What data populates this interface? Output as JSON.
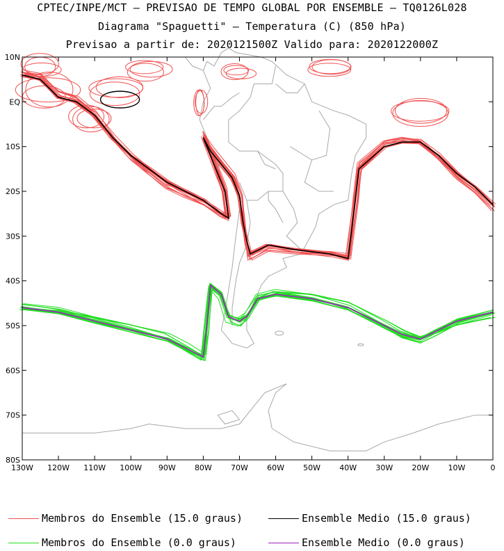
{
  "header": {
    "line1": "CPTEC/INPE/MCT — PREVISAO DE TEMPO GLOBAL POR ENSEMBLE — TQ0126L028",
    "line2": "Diagrama \"Spaguetti\" — Temperatura (C) (850 hPa)",
    "line3": "Previsao a partir de: 2020121500Z  Valido para: 2020122000Z"
  },
  "axes": {
    "y_ticks": [
      "10N",
      "EQ",
      "10S",
      "20S",
      "30S",
      "40S",
      "50S",
      "60S",
      "70S",
      "80S"
    ],
    "y_values": [
      10,
      0,
      -10,
      -20,
      -30,
      -40,
      -50,
      -60,
      -70,
      -80
    ],
    "x_ticks": [
      "130W",
      "120W",
      "110W",
      "100W",
      "90W",
      "80W",
      "70W",
      "60W",
      "50W",
      "40W",
      "30W",
      "20W",
      "10W",
      "0"
    ],
    "x_values": [
      -130,
      -120,
      -110,
      -100,
      -90,
      -80,
      -70,
      -60,
      -50,
      -40,
      -30,
      -20,
      -10,
      0
    ],
    "lon_range": [
      -130,
      0
    ],
    "lat_range": [
      -80,
      10
    ]
  },
  "colors": {
    "member_15": "#f05050",
    "mean_15": "#000000",
    "member_0": "#22dd22",
    "mean_0": "#a020c0",
    "coast": "#a8a8a8"
  },
  "chart_data": {
    "type": "line",
    "series": [
      {
        "name": "Ensemble Medio (15.0 graus)",
        "points": [
          [
            -130,
            6
          ],
          [
            -125,
            5
          ],
          [
            -120,
            1
          ],
          [
            -115,
            0
          ],
          [
            -110,
            -3
          ],
          [
            -105,
            -8
          ],
          [
            -100,
            -12
          ],
          [
            -95,
            -15
          ],
          [
            -90,
            -18
          ],
          [
            -85,
            -20
          ],
          [
            -80,
            -22
          ],
          [
            -75,
            -25
          ],
          [
            -73,
            -26
          ],
          [
            -74,
            -20
          ],
          [
            -76,
            -16
          ],
          [
            -80,
            -8
          ],
          [
            -78,
            -11
          ],
          [
            -72,
            -17
          ],
          [
            -70,
            -21
          ],
          [
            -69,
            -27
          ],
          [
            -68,
            -31
          ],
          [
            -67,
            -34
          ],
          [
            -62,
            -32
          ],
          [
            -55,
            -33
          ],
          [
            -45,
            -34
          ],
          [
            -40,
            -35
          ],
          [
            -38,
            -22
          ],
          [
            -37,
            -15
          ],
          [
            -30,
            -10
          ],
          [
            -25,
            -9
          ],
          [
            -20,
            -9
          ],
          [
            -15,
            -12
          ],
          [
            -10,
            -16
          ],
          [
            -5,
            -19
          ],
          [
            0,
            -23
          ]
        ]
      },
      {
        "name": "Ensemble Medio (0.0 graus)",
        "points": [
          [
            -130,
            -46
          ],
          [
            -120,
            -47
          ],
          [
            -110,
            -49
          ],
          [
            -100,
            -51
          ],
          [
            -90,
            -53
          ],
          [
            -85,
            -55
          ],
          [
            -80,
            -57
          ],
          [
            -79,
            -50
          ],
          [
            -78,
            -41
          ],
          [
            -75,
            -43
          ],
          [
            -73,
            -48
          ],
          [
            -70,
            -49
          ],
          [
            -68,
            -48
          ],
          [
            -65,
            -44
          ],
          [
            -60,
            -43
          ],
          [
            -50,
            -44
          ],
          [
            -40,
            -46
          ],
          [
            -30,
            -50
          ],
          [
            -25,
            -52
          ],
          [
            -20,
            -53
          ],
          [
            -15,
            -51
          ],
          [
            -10,
            -49
          ],
          [
            0,
            -47
          ]
        ]
      }
    ]
  },
  "legend": {
    "item1": "Membros do Ensemble (15.0 graus)",
    "item2": "Ensemble Medio (15.0 graus)",
    "item3": "Membros do Ensemble (0.0 graus)",
    "item4": "Ensemble Medio (0.0 graus)"
  }
}
